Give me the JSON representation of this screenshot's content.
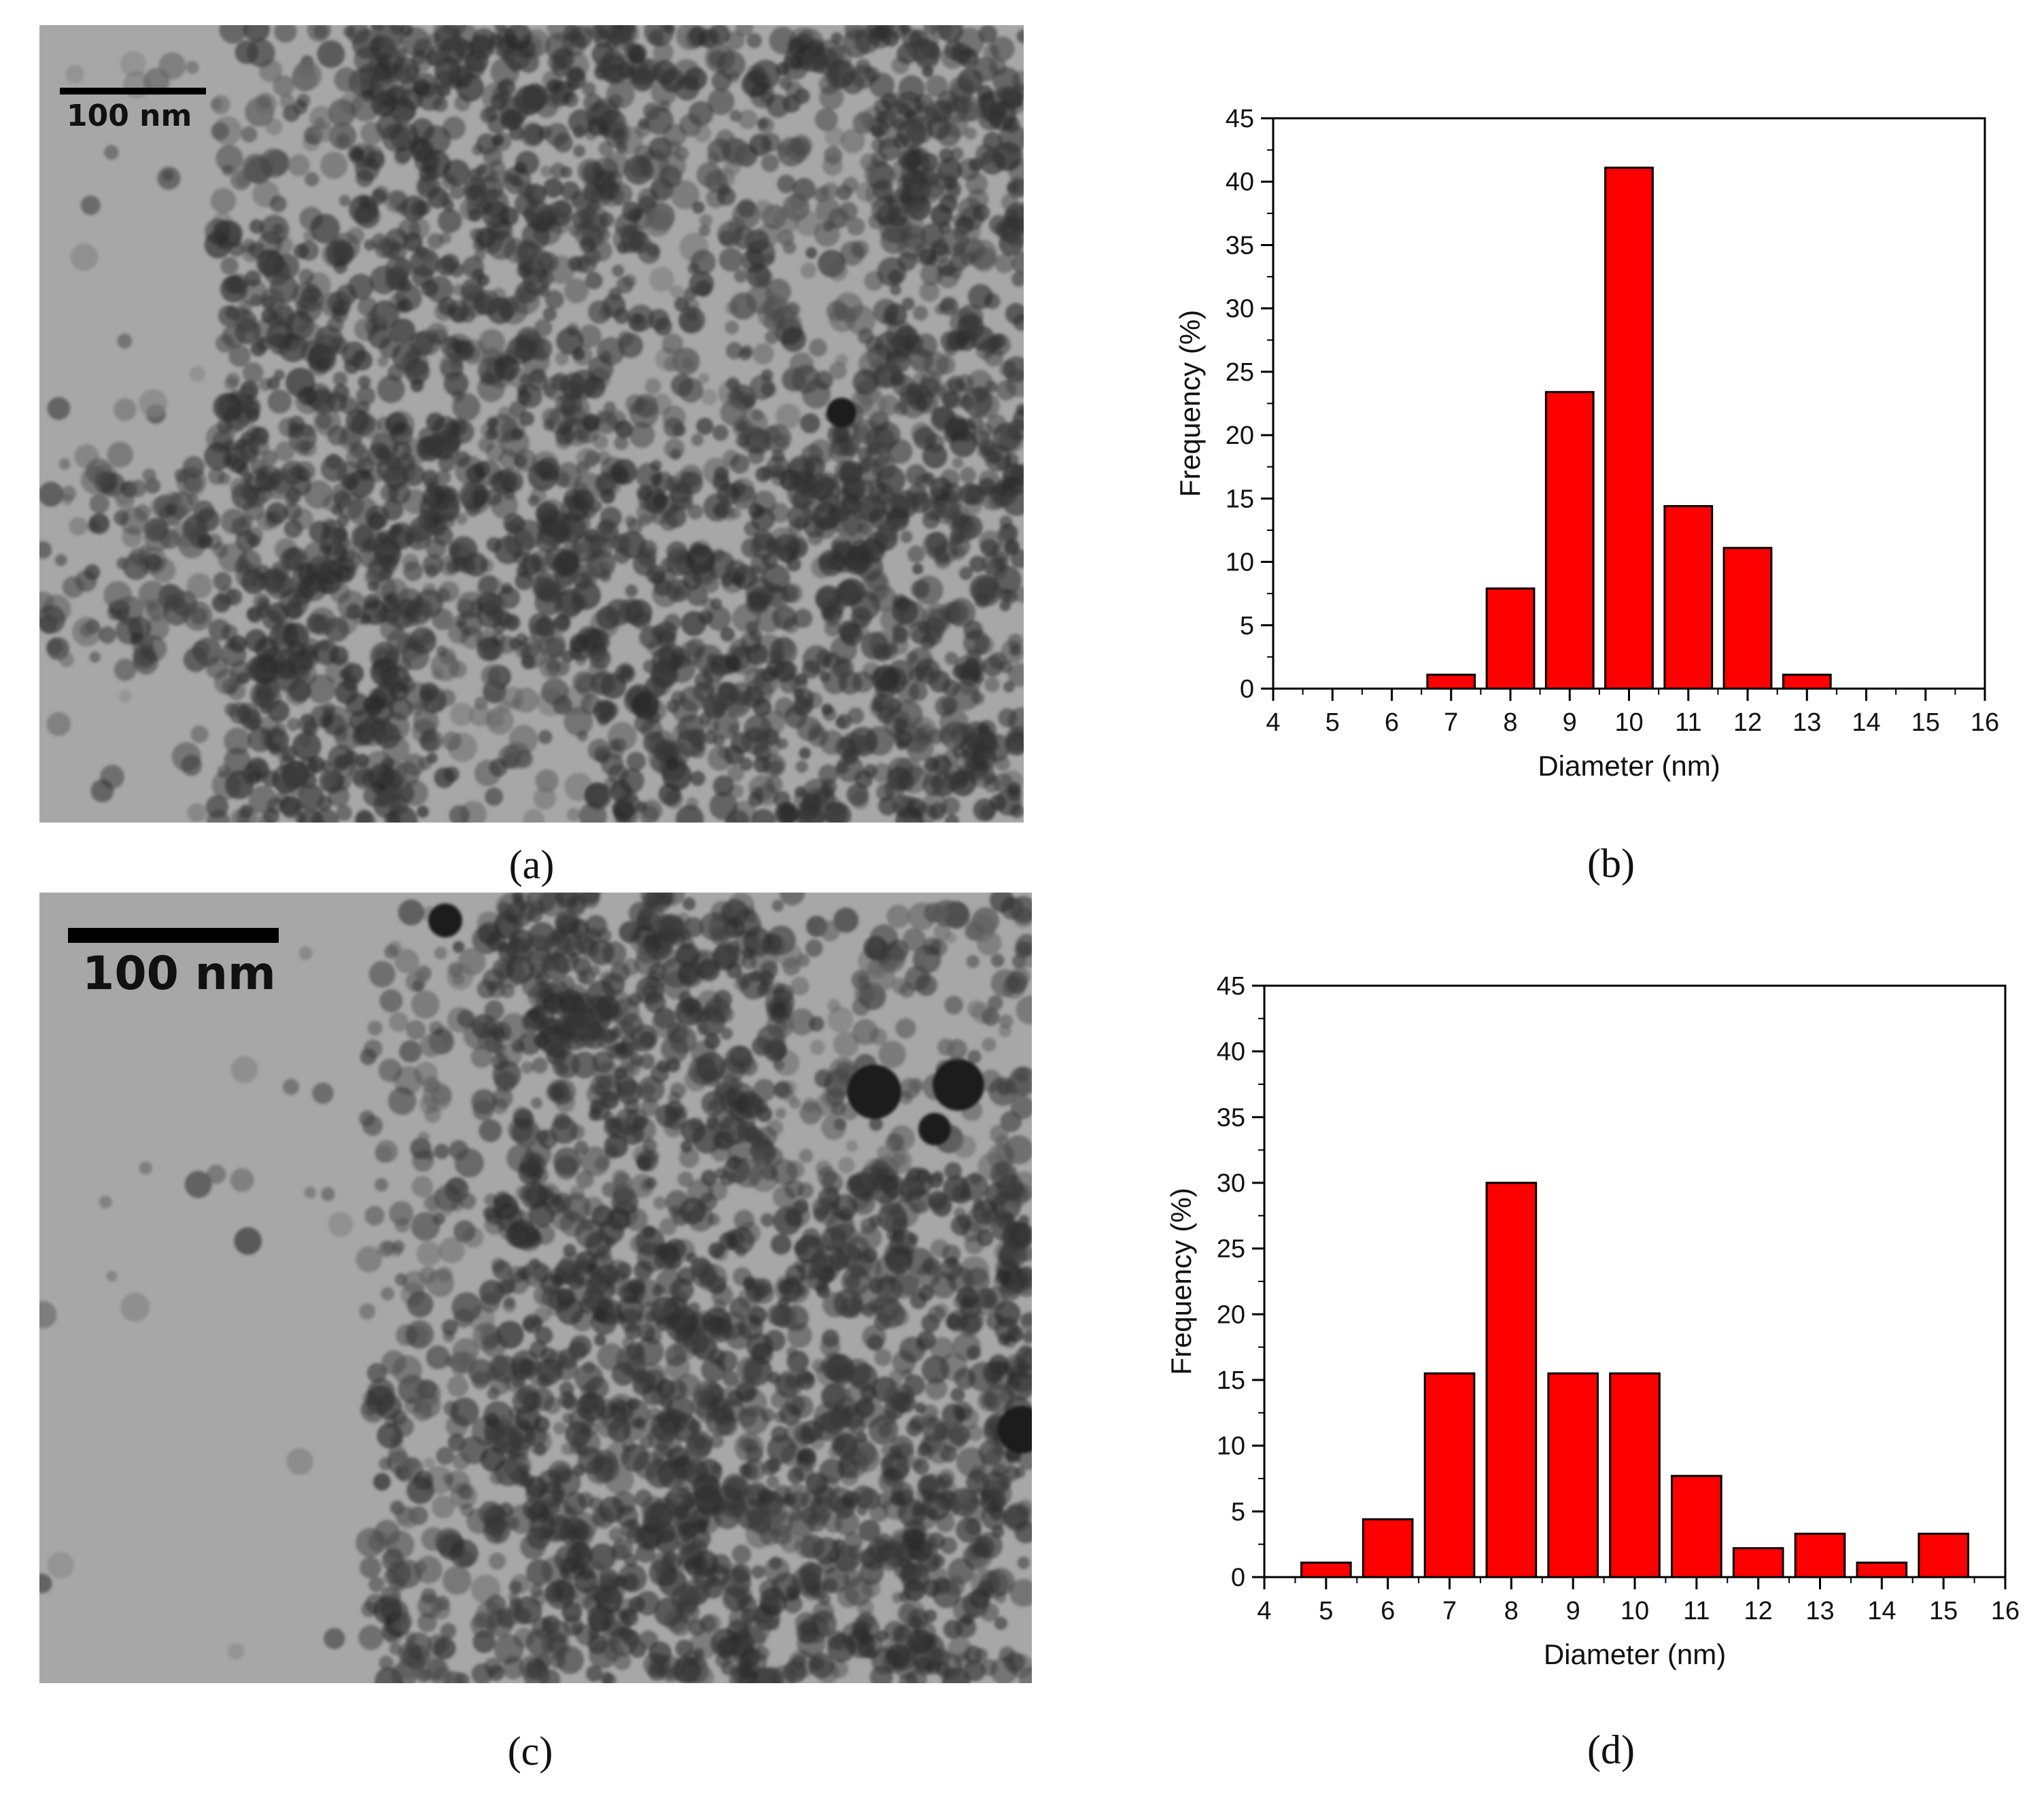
{
  "panels": {
    "a": {
      "label": "(a)",
      "scale_bar": "100 nm"
    },
    "b": {
      "label": "(b)"
    },
    "c": {
      "label": "(c)",
      "scale_bar": "100 nm"
    },
    "d": {
      "label": "(d)"
    }
  },
  "colors": {
    "bar_fill": "#ff0000",
    "bar_stroke": "#000000",
    "micrograph_background": "#a7a7a7"
  },
  "chart_data": [
    {
      "panel": "b",
      "type": "bar",
      "xlabel": "Diameter (nm)",
      "ylabel": "Frequency (%)",
      "xlim": [
        4,
        16
      ],
      "ylim": [
        0,
        45
      ],
      "x_ticks": [
        4,
        5,
        6,
        7,
        8,
        9,
        10,
        11,
        12,
        13,
        14,
        15,
        16
      ],
      "y_ticks": [
        0,
        5,
        10,
        15,
        20,
        25,
        30,
        35,
        40,
        45
      ],
      "bar_width": 0.8,
      "x": [
        7,
        8,
        9,
        10,
        11,
        12,
        13
      ],
      "values": [
        1.1,
        7.9,
        23.4,
        41.1,
        14.4,
        11.1,
        1.1
      ],
      "grid": false,
      "legend": "none"
    },
    {
      "panel": "d",
      "type": "bar",
      "xlabel": "Diameter (nm)",
      "ylabel": "Frequency (%)",
      "xlim": [
        4,
        16
      ],
      "ylim": [
        0,
        45
      ],
      "x_ticks": [
        4,
        5,
        6,
        7,
        8,
        9,
        10,
        11,
        12,
        13,
        14,
        15,
        16
      ],
      "y_ticks": [
        0,
        5,
        10,
        15,
        20,
        25,
        30,
        35,
        40,
        45
      ],
      "bar_width": 0.8,
      "x": [
        5,
        6,
        7,
        8,
        9,
        10,
        11,
        12,
        13,
        14,
        15
      ],
      "values": [
        1.1,
        4.4,
        15.5,
        30.0,
        15.5,
        15.5,
        7.7,
        2.2,
        3.3,
        1.1,
        3.3
      ],
      "grid": false,
      "legend": "none"
    }
  ]
}
